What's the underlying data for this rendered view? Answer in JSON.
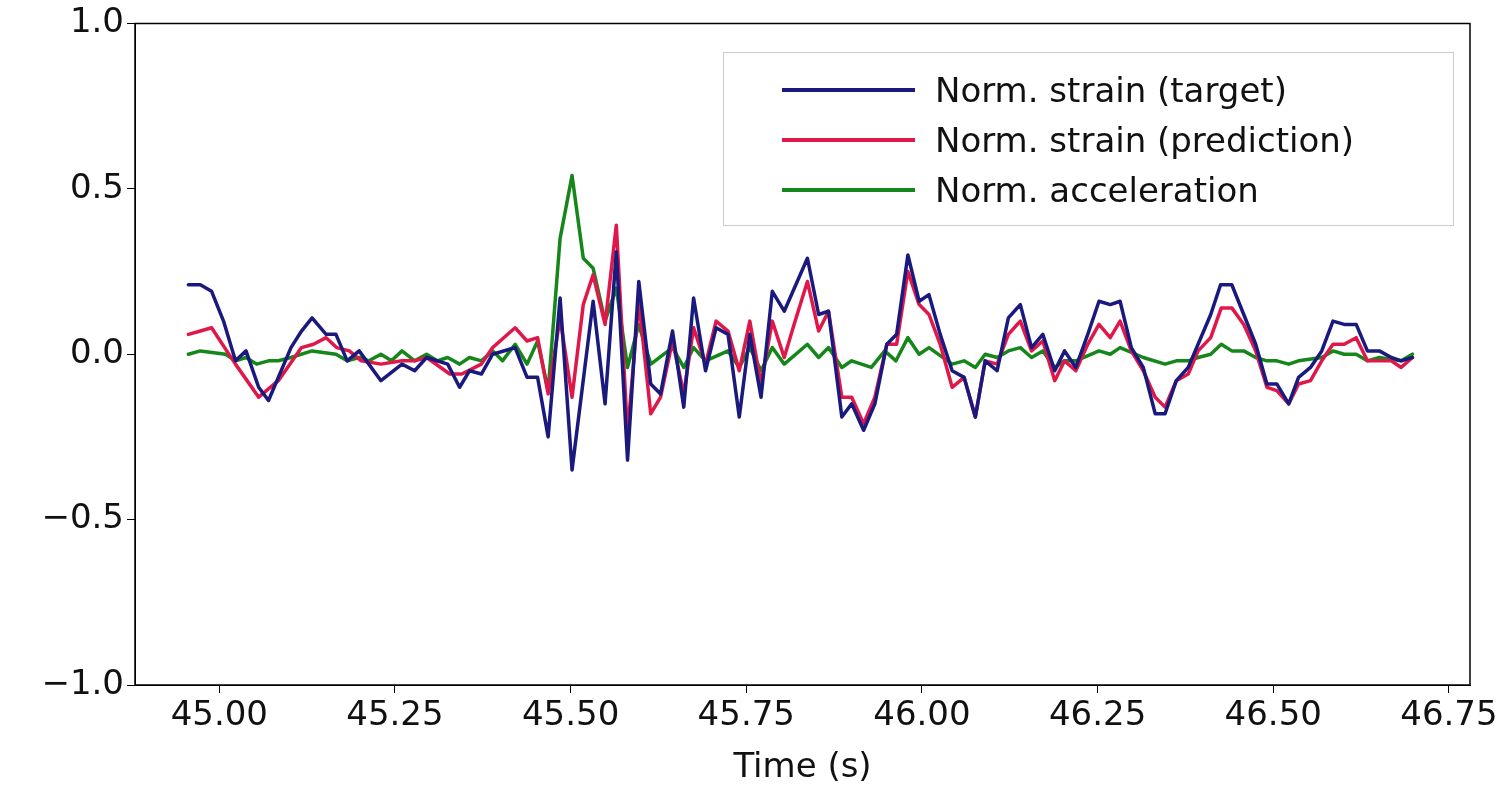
{
  "chart_data": {
    "type": "line",
    "xlabel": "Time (s)",
    "legend": "top right",
    "grid": false,
    "marker": "none",
    "line_style": "solid",
    "xlim": [
      44.88,
      46.78
    ],
    "xticks": [
      {
        "value": 45,
        "label": "45.00"
      },
      {
        "value": 45.25,
        "label": "45.25"
      },
      {
        "value": 45.5,
        "label": "45.50"
      },
      {
        "value": 45.75,
        "label": "45.75"
      },
      {
        "value": 46,
        "label": "46.00"
      },
      {
        "value": 46.25,
        "label": "46.25"
      },
      {
        "value": 46.5,
        "label": "46.50"
      },
      {
        "value": 46.75,
        "label": "46.75"
      }
    ],
    "ylim": [
      -1,
      1
    ],
    "yticks": [
      {
        "value": -1,
        "label": "−1.0"
      },
      {
        "value": -0.5,
        "label": "−0.5"
      },
      {
        "value": 0,
        "label": "0.0"
      },
      {
        "value": 0.5,
        "label": "0.5"
      },
      {
        "value": 1,
        "label": "1.0"
      }
    ],
    "series": [
      {
        "name": "Norm. strain (target)",
        "color": "#1a1a7e",
        "x": [
          44.956,
          44.973,
          44.989,
          45.006,
          45.023,
          45.038,
          45.056,
          45.07,
          45.102,
          45.117,
          45.132,
          45.152,
          45.166,
          45.182,
          45.199,
          45.23,
          45.26,
          45.278,
          45.295,
          45.325,
          45.342,
          45.356,
          45.373,
          45.389,
          45.421,
          45.438,
          45.453,
          45.468,
          45.485,
          45.502,
          45.532,
          45.549,
          45.565,
          45.581,
          45.597,
          45.614,
          45.628,
          45.645,
          45.661,
          45.675,
          45.692,
          45.707,
          45.724,
          45.74,
          45.755,
          45.771,
          45.787,
          45.804,
          45.837,
          45.853,
          45.867,
          45.886,
          45.9,
          45.917,
          45.933,
          45.95,
          45.964,
          45.98,
          45.996,
          46.01,
          46.026,
          46.043,
          46.06,
          46.076,
          46.09,
          46.107,
          46.123,
          46.14,
          46.156,
          46.172,
          46.189,
          46.203,
          46.219,
          46.236,
          46.252,
          46.268,
          46.282,
          46.298,
          46.315,
          46.332,
          46.346,
          46.362,
          46.379,
          46.393,
          46.411,
          46.425,
          46.441,
          46.458,
          46.475,
          46.491,
          46.505,
          46.522,
          46.536,
          46.553,
          46.569,
          46.585,
          46.601,
          46.618,
          46.634,
          46.651,
          46.668,
          46.682,
          46.698
        ],
        "values": [
          0.21,
          0.21,
          0.19,
          0.1,
          -0.02,
          0.01,
          -0.1,
          -0.14,
          0.02,
          0.07,
          0.11,
          0.06,
          0.06,
          -0.02,
          0.01,
          -0.08,
          -0.03,
          -0.05,
          -0.01,
          -0.03,
          -0.1,
          -0.05,
          -0.06,
          0.0,
          0.02,
          -0.07,
          -0.07,
          -0.25,
          0.17,
          -0.35,
          0.16,
          -0.15,
          0.31,
          -0.32,
          0.22,
          -0.09,
          -0.12,
          0.07,
          -0.16,
          0.17,
          -0.05,
          0.08,
          0.06,
          -0.19,
          0.06,
          -0.13,
          0.19,
          0.13,
          0.29,
          0.12,
          0.13,
          -0.19,
          -0.15,
          -0.23,
          -0.15,
          0.03,
          0.06,
          0.3,
          0.16,
          0.18,
          0.06,
          -0.05,
          -0.07,
          -0.19,
          -0.02,
          -0.05,
          0.11,
          0.15,
          0.02,
          0.06,
          -0.05,
          0.01,
          -0.04,
          0.06,
          0.16,
          0.15,
          0.16,
          0.02,
          -0.04,
          -0.18,
          -0.18,
          -0.08,
          -0.04,
          0.03,
          0.12,
          0.21,
          0.21,
          0.12,
          0.03,
          -0.09,
          -0.09,
          -0.15,
          -0.07,
          -0.04,
          0.01,
          0.1,
          0.09,
          0.09,
          0.01,
          0.01,
          -0.01,
          -0.02,
          -0.01
        ]
      },
      {
        "name": "Norm. strain (prediction)",
        "color": "#e0184a",
        "x": [
          44.956,
          44.973,
          44.989,
          45.023,
          45.056,
          45.084,
          45.117,
          45.134,
          45.152,
          45.167,
          45.185,
          45.202,
          45.23,
          45.26,
          45.278,
          45.295,
          45.328,
          45.345,
          45.373,
          45.389,
          45.421,
          45.438,
          45.453,
          45.468,
          45.485,
          45.502,
          45.518,
          45.532,
          45.549,
          45.565,
          45.581,
          45.597,
          45.614,
          45.628,
          45.645,
          45.661,
          45.675,
          45.692,
          45.707,
          45.724,
          45.74,
          45.755,
          45.771,
          45.787,
          45.804,
          45.818,
          45.837,
          45.853,
          45.867,
          45.886,
          45.9,
          45.917,
          45.933,
          45.95,
          45.964,
          45.98,
          45.996,
          46.01,
          46.026,
          46.043,
          46.06,
          46.076,
          46.09,
          46.107,
          46.123,
          46.14,
          46.156,
          46.172,
          46.189,
          46.203,
          46.219,
          46.236,
          46.252,
          46.268,
          46.282,
          46.298,
          46.315,
          46.332,
          46.346,
          46.362,
          46.379,
          46.393,
          46.411,
          46.426,
          46.441,
          46.458,
          46.475,
          46.491,
          46.505,
          46.522,
          46.536,
          46.553,
          46.569,
          46.585,
          46.601,
          46.618,
          46.634,
          46.668,
          46.682,
          46.698
        ],
        "values": [
          0.06,
          0.07,
          0.08,
          -0.03,
          -0.13,
          -0.08,
          0.02,
          0.03,
          0.05,
          0.02,
          0.01,
          -0.02,
          -0.03,
          -0.02,
          -0.02,
          -0.01,
          -0.06,
          -0.06,
          -0.03,
          0.02,
          0.08,
          0.04,
          0.05,
          -0.12,
          0.11,
          -0.13,
          0.15,
          0.24,
          0.09,
          0.39,
          -0.24,
          0.16,
          -0.18,
          -0.13,
          0.04,
          -0.12,
          0.08,
          -0.03,
          0.1,
          0.07,
          -0.05,
          0.1,
          -0.09,
          0.1,
          -0.01,
          0.09,
          0.22,
          0.07,
          0.13,
          -0.13,
          -0.13,
          -0.21,
          -0.13,
          0.03,
          0.03,
          0.25,
          0.15,
          0.12,
          0.03,
          -0.1,
          -0.07,
          -0.19,
          -0.02,
          -0.03,
          0.06,
          0.1,
          0.01,
          0.04,
          -0.08,
          -0.02,
          -0.05,
          0.03,
          0.09,
          0.05,
          0.1,
          0.01,
          -0.05,
          -0.13,
          -0.16,
          -0.08,
          -0.06,
          0.01,
          0.05,
          0.14,
          0.14,
          0.09,
          0.01,
          -0.1,
          -0.11,
          -0.15,
          -0.09,
          -0.08,
          -0.02,
          0.03,
          0.03,
          0.05,
          -0.02,
          -0.02,
          -0.04,
          -0.01
        ]
      },
      {
        "name": "Norm. acceleration",
        "color": "#15861a",
        "x": [
          44.956,
          44.973,
          45.009,
          45.023,
          45.038,
          45.053,
          45.07,
          45.084,
          45.102,
          45.132,
          45.166,
          45.182,
          45.199,
          45.213,
          45.23,
          45.245,
          45.26,
          45.278,
          45.295,
          45.31,
          45.325,
          45.342,
          45.356,
          45.373,
          45.389,
          45.403,
          45.421,
          45.438,
          45.453,
          45.468,
          45.485,
          45.502,
          45.518,
          45.532,
          45.549,
          45.565,
          45.581,
          45.597,
          45.614,
          45.645,
          45.661,
          45.675,
          45.692,
          45.724,
          45.74,
          45.755,
          45.771,
          45.787,
          45.804,
          45.837,
          45.853,
          45.867,
          45.886,
          45.9,
          45.928,
          45.947,
          45.963,
          45.98,
          45.996,
          46.01,
          46.043,
          46.06,
          46.076,
          46.09,
          46.107,
          46.123,
          46.14,
          46.156,
          46.172,
          46.189,
          46.203,
          46.219,
          46.252,
          46.268,
          46.282,
          46.315,
          46.346,
          46.362,
          46.379,
          46.393,
          46.411,
          46.426,
          46.441,
          46.458,
          46.475,
          46.491,
          46.505,
          46.522,
          46.536,
          46.569,
          46.585,
          46.601,
          46.618,
          46.634,
          46.651,
          46.682,
          46.698
        ],
        "values": [
          0.0,
          0.01,
          0.0,
          -0.02,
          -0.01,
          -0.03,
          -0.02,
          -0.02,
          -0.01,
          0.01,
          0.0,
          -0.02,
          -0.01,
          -0.02,
          0.0,
          -0.02,
          0.01,
          -0.02,
          0.0,
          -0.02,
          -0.01,
          -0.03,
          -0.01,
          -0.02,
          0.01,
          -0.02,
          0.03,
          -0.03,
          0.04,
          -0.11,
          0.35,
          0.54,
          0.29,
          0.26,
          0.1,
          0.2,
          -0.04,
          0.09,
          -0.03,
          0.02,
          -0.04,
          0.02,
          -0.02,
          0.01,
          -0.04,
          0.02,
          -0.05,
          0.02,
          -0.03,
          0.03,
          -0.01,
          0.02,
          -0.04,
          -0.02,
          -0.04,
          0.01,
          -0.02,
          0.05,
          0.0,
          0.02,
          -0.03,
          -0.02,
          -0.04,
          0.0,
          -0.01,
          0.01,
          0.02,
          -0.01,
          0.01,
          -0.04,
          -0.02,
          -0.02,
          0.01,
          0.0,
          0.02,
          -0.01,
          -0.03,
          -0.02,
          -0.02,
          -0.01,
          0.0,
          0.03,
          0.01,
          0.01,
          -0.01,
          -0.02,
          -0.02,
          -0.03,
          -0.02,
          -0.01,
          0.01,
          0.0,
          0.0,
          -0.02,
          -0.01,
          -0.02,
          0.0
        ]
      }
    ]
  }
}
